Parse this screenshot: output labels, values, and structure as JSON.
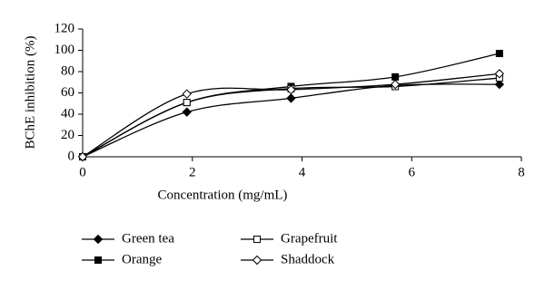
{
  "chart_data": {
    "type": "line",
    "xlabel": "Concentration (mg/mL)",
    "ylabel": "BChE inhibition (%)",
    "x": [
      0,
      1.9,
      3.8,
      5.7,
      7.6
    ],
    "series": [
      {
        "name": "Green tea",
        "color": "#000000",
        "marker": "diamond",
        "marker_fill": "#000000",
        "values": [
          0,
          42,
          55,
          67,
          68
        ]
      },
      {
        "name": "Orange",
        "color": "#000000",
        "marker": "square",
        "marker_fill": "#000000",
        "values": [
          0,
          51,
          66,
          75,
          97
        ]
      },
      {
        "name": "Grapefruit",
        "color": "#000000",
        "marker": "square",
        "marker_fill": "#ffffff",
        "values": [
          0,
          51,
          64,
          66,
          74
        ]
      },
      {
        "name": "Shaddock",
        "color": "#000000",
        "marker": "diamond",
        "marker_fill": "#ffffff",
        "values": [
          0,
          59,
          63,
          68,
          78
        ]
      }
    ],
    "xlim": [
      0,
      8
    ],
    "xticks": [
      0,
      2,
      4,
      6,
      8
    ],
    "ylim": [
      0,
      120
    ],
    "yticks": [
      0,
      20,
      40,
      60,
      80,
      100,
      120
    ],
    "grid": false,
    "smooth": true
  }
}
